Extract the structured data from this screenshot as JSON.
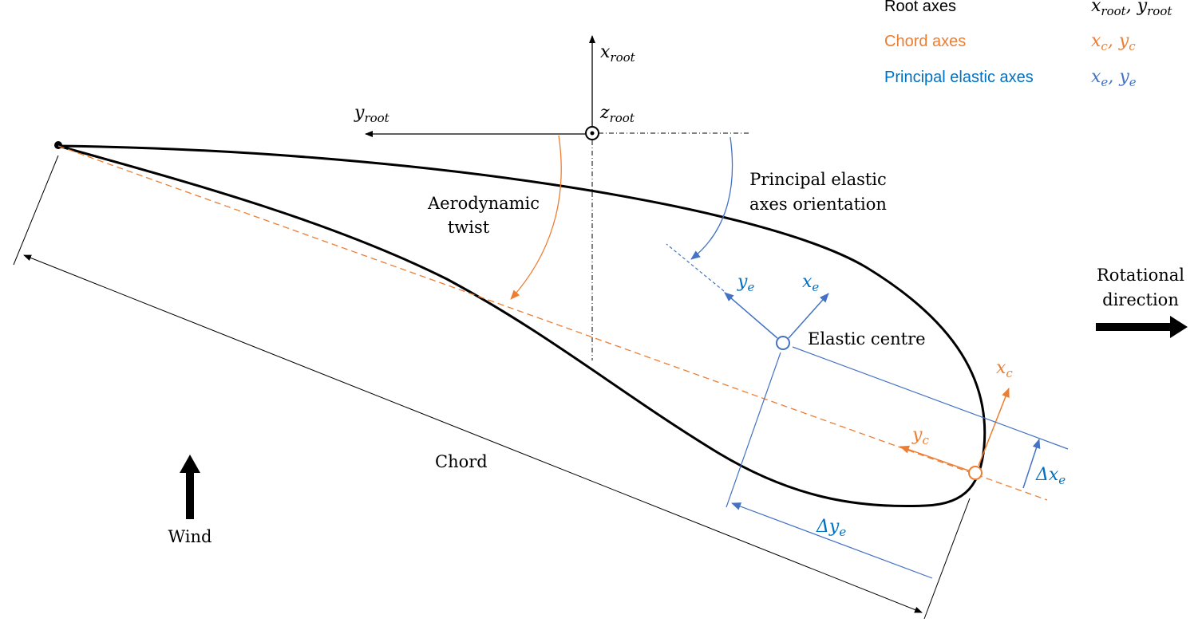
{
  "colors": {
    "black": "#000000",
    "orange": "#ED7D31",
    "blue": "#4472C4",
    "blue_text": "#0070C0"
  },
  "legend": [
    {
      "label": "Root axes",
      "symbols": [
        {
          "base": "x",
          "sub": "root"
        },
        {
          "base": "y",
          "sub": "root"
        }
      ]
    },
    {
      "label": "Chord axes",
      "symbols": [
        {
          "base": "x",
          "sub": "c"
        },
        {
          "base": "y",
          "sub": "c"
        }
      ]
    },
    {
      "label": "Principal elastic axes",
      "symbols": [
        {
          "base": "x",
          "sub": "e"
        },
        {
          "base": "y",
          "sub": "e"
        }
      ]
    }
  ],
  "root_axes": {
    "x": {
      "base": "x",
      "sub": "root"
    },
    "y": {
      "base": "y",
      "sub": "root"
    },
    "z": {
      "base": "z",
      "sub": "root"
    }
  },
  "chord_axes": {
    "x": {
      "base": "x",
      "sub": "c"
    },
    "y": {
      "base": "y",
      "sub": "c"
    }
  },
  "elastic_axes": {
    "x": {
      "base": "x",
      "sub": "e"
    },
    "y": {
      "base": "y",
      "sub": "e"
    }
  },
  "offsets": {
    "dx": {
      "base": "Δx",
      "sub": "e"
    },
    "dy": {
      "base": "Δy",
      "sub": "e"
    }
  },
  "labels": {
    "aero_twist": [
      "Aerodynamic",
      "twist"
    ],
    "elastic_orientation": [
      "Principal elastic",
      "axes orientation"
    ],
    "elastic_centre": "Elastic centre",
    "chord": "Chord",
    "rotational": [
      "Rotational",
      "direction"
    ],
    "wind": "Wind"
  }
}
